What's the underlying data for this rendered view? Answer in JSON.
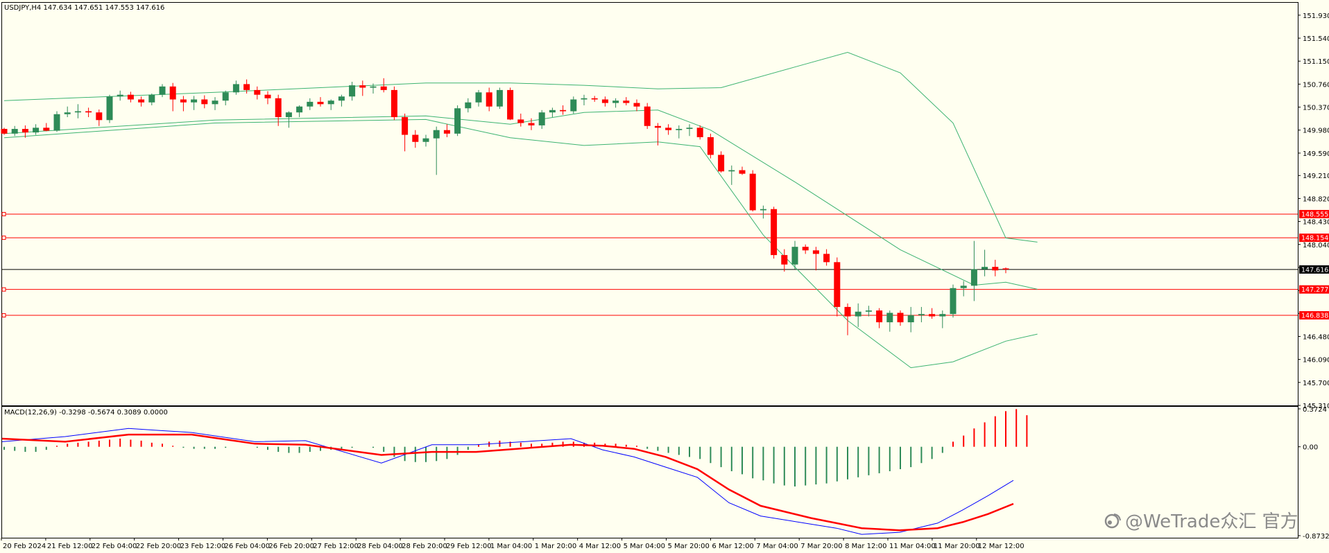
{
  "symbol_header": "USDJPY,H4  147.634 147.651 147.553 147.616",
  "macd_header": "MACD(12,26,9) -0.3298 -0.5674 0.3089 0.0000",
  "watermark": "@WeTrade众汇 官方",
  "colors": {
    "background": "#fffff0",
    "bull": "#2e8b57",
    "bear": "#ff0000",
    "bands": "#3cb371",
    "levels": "#ff0000",
    "macd_line": "#0000ff",
    "signal_line": "#ff0000"
  },
  "chart_data": [
    {
      "type": "candlestick",
      "title": "USDJPY,H4",
      "ohlc_readout": [
        "147.634",
        "147.651",
        "147.553",
        "147.616"
      ],
      "ylim": [
        145.31,
        152.14
      ],
      "y_ticks": [
        "151.930",
        "151.540",
        "151.150",
        "150.760",
        "150.370",
        "149.980",
        "149.590",
        "149.210",
        "148.820",
        "148.430",
        "148.040",
        "147.650",
        "147.260",
        "146.870",
        "146.480",
        "146.090",
        "145.700",
        "145.310"
      ],
      "x_ticks": [
        "20 Feb 2024",
        "21 Feb 12:00",
        "22 Feb 04:00",
        "22 Feb 20:00",
        "23 Feb 12:00",
        "26 Feb 04:00",
        "26 Feb 20:00",
        "27 Feb 12:00",
        "28 Feb 04:00",
        "28 Feb 20:00",
        "29 Feb 12:00",
        "1 Mar 04:00",
        "1 Mar 20:00",
        "4 Mar 12:00",
        "5 Mar 04:00",
        "5 Mar 20:00",
        "6 Mar 12:00",
        "7 Mar 04:00",
        "7 Mar 20:00",
        "8 Mar 12:00",
        "11 Mar 04:00",
        "11 Mar 20:00",
        "12 Mar 12:00"
      ],
      "current_price": {
        "value": 147.616,
        "label": "147.616"
      },
      "horizontal_levels": [
        {
          "value": 148.555,
          "label": "148.555"
        },
        {
          "value": 148.154,
          "label": "148.154"
        },
        {
          "value": 147.277,
          "label": "147.277"
        },
        {
          "value": 146.838,
          "label": "146.838"
        }
      ],
      "candles": [
        [
          150.0,
          150.02,
          149.9,
          149.92
        ],
        [
          149.92,
          150.05,
          149.88,
          150.0
        ],
        [
          150.0,
          150.06,
          149.85,
          149.94
        ],
        [
          149.94,
          150.08,
          149.9,
          150.02
        ],
        [
          150.02,
          150.1,
          149.96,
          149.97
        ],
        [
          149.97,
          150.3,
          149.95,
          150.25
        ],
        [
          150.25,
          150.38,
          150.2,
          150.28
        ],
        [
          150.28,
          150.42,
          150.18,
          150.3
        ],
        [
          150.3,
          150.36,
          150.2,
          150.28
        ],
        [
          150.28,
          150.33,
          150.05,
          150.15
        ],
        [
          150.15,
          150.58,
          150.1,
          150.55
        ],
        [
          150.55,
          150.65,
          150.48,
          150.58
        ],
        [
          150.58,
          150.63,
          150.45,
          150.5
        ],
        [
          150.5,
          150.55,
          150.38,
          150.45
        ],
        [
          150.45,
          150.6,
          150.4,
          150.58
        ],
        [
          150.58,
          150.76,
          150.54,
          150.72
        ],
        [
          150.72,
          150.78,
          150.3,
          150.5
        ],
        [
          150.5,
          150.56,
          150.3,
          150.45
        ],
        [
          150.45,
          150.56,
          150.32,
          150.5
        ],
        [
          150.5,
          150.57,
          150.35,
          150.42
        ],
        [
          150.42,
          150.54,
          150.32,
          150.48
        ],
        [
          150.48,
          150.65,
          150.4,
          150.62
        ],
        [
          150.62,
          150.82,
          150.58,
          150.76
        ],
        [
          150.76,
          150.84,
          150.6,
          150.66
        ],
        [
          150.66,
          150.72,
          150.5,
          150.58
        ],
        [
          150.58,
          150.64,
          150.42,
          150.52
        ],
        [
          150.52,
          150.58,
          150.05,
          150.2
        ],
        [
          150.2,
          150.3,
          150.02,
          150.28
        ],
        [
          150.28,
          150.4,
          150.2,
          150.38
        ],
        [
          150.38,
          150.52,
          150.32,
          150.46
        ],
        [
          150.46,
          150.54,
          150.38,
          150.42
        ],
        [
          150.42,
          150.5,
          150.32,
          150.48
        ],
        [
          150.48,
          150.58,
          150.38,
          150.55
        ],
        [
          150.55,
          150.8,
          150.48,
          150.74
        ],
        [
          150.74,
          150.82,
          150.56,
          150.7
        ],
        [
          150.7,
          150.77,
          150.6,
          150.72
        ],
        [
          150.72,
          150.86,
          150.62,
          150.66
        ],
        [
          150.66,
          150.72,
          150.15,
          150.2
        ],
        [
          150.2,
          150.26,
          149.62,
          149.9
        ],
        [
          149.9,
          149.98,
          149.68,
          149.78
        ],
        [
          149.78,
          149.9,
          149.7,
          149.84
        ],
        [
          149.84,
          150.04,
          149.22,
          149.98
        ],
        [
          149.98,
          150.08,
          149.86,
          149.92
        ],
        [
          149.92,
          150.4,
          149.88,
          150.35
        ],
        [
          150.35,
          150.52,
          150.28,
          150.45
        ],
        [
          150.45,
          150.66,
          150.38,
          150.62
        ],
        [
          150.62,
          150.7,
          150.3,
          150.38
        ],
        [
          150.38,
          150.7,
          150.34,
          150.66
        ],
        [
          150.66,
          150.7,
          150.15,
          150.16
        ],
        [
          150.16,
          150.26,
          150.04,
          150.1
        ],
        [
          150.1,
          150.18,
          149.98,
          150.06
        ],
        [
          150.06,
          150.32,
          150.0,
          150.28
        ],
        [
          150.28,
          150.36,
          150.2,
          150.32
        ],
        [
          150.32,
          150.4,
          150.24,
          150.3
        ],
        [
          150.3,
          150.55,
          150.26,
          150.5
        ],
        [
          150.5,
          150.58,
          150.4,
          150.52
        ],
        [
          150.52,
          150.56,
          150.46,
          150.5
        ],
        [
          150.5,
          150.55,
          150.38,
          150.44
        ],
        [
          150.44,
          150.52,
          150.36,
          150.48
        ],
        [
          150.48,
          150.54,
          150.4,
          150.44
        ],
        [
          150.44,
          150.5,
          150.3,
          150.38
        ],
        [
          150.38,
          150.44,
          150.0,
          150.05
        ],
        [
          150.05,
          150.1,
          149.72,
          150.02
        ],
        [
          150.02,
          150.08,
          149.9,
          149.98
        ],
        [
          149.98,
          150.06,
          149.84,
          150.0
        ],
        [
          150.0,
          150.08,
          149.88,
          150.02
        ],
        [
          150.02,
          150.06,
          149.82,
          149.86
        ],
        [
          149.86,
          149.92,
          149.5,
          149.56
        ],
        [
          149.56,
          149.62,
          149.26,
          149.28
        ],
        [
          149.28,
          149.38,
          149.05,
          149.3
        ],
        [
          149.3,
          149.36,
          149.22,
          149.24
        ],
        [
          149.24,
          149.3,
          148.6,
          148.62
        ],
        [
          148.62,
          148.7,
          148.48,
          148.64
        ],
        [
          148.64,
          148.68,
          147.8,
          147.86
        ],
        [
          147.86,
          147.96,
          147.58,
          147.7
        ],
        [
          147.7,
          148.1,
          147.62,
          148.0
        ],
        [
          148.0,
          148.04,
          147.88,
          147.94
        ],
        [
          147.94,
          148.0,
          147.6,
          147.88
        ],
        [
          147.88,
          147.96,
          147.68,
          147.74
        ],
        [
          147.74,
          147.82,
          146.82,
          146.98
        ],
        [
          146.98,
          147.04,
          146.5,
          146.82
        ],
        [
          146.82,
          147.04,
          146.64,
          146.9
        ],
        [
          146.9,
          147.0,
          146.82,
          146.92
        ],
        [
          146.92,
          146.96,
          146.62,
          146.72
        ],
        [
          146.72,
          146.92,
          146.56,
          146.88
        ],
        [
          146.88,
          146.92,
          146.66,
          146.72
        ],
        [
          146.72,
          146.98,
          146.55,
          146.84
        ],
        [
          146.84,
          146.98,
          146.72,
          146.86
        ],
        [
          146.86,
          146.96,
          146.78,
          146.82
        ],
        [
          146.82,
          146.92,
          146.62,
          146.86
        ],
        [
          146.86,
          147.36,
          146.8,
          147.3
        ],
        [
          147.3,
          147.42,
          147.16,
          147.34
        ],
        [
          147.34,
          148.1,
          147.08,
          147.62
        ],
        [
          147.62,
          147.95,
          147.5,
          147.66
        ],
        [
          147.66,
          147.78,
          147.5,
          147.6
        ],
        [
          147.634,
          147.651,
          147.553,
          147.616
        ]
      ],
      "bands": {
        "upper": [
          [
            0,
            150.48
          ],
          [
            20,
            150.62
          ],
          [
            40,
            150.78
          ],
          [
            48,
            150.78
          ],
          [
            55,
            150.74
          ],
          [
            62,
            150.68
          ],
          [
            68,
            150.7
          ],
          [
            75,
            151.05
          ],
          [
            80,
            151.3
          ],
          [
            85,
            150.95
          ],
          [
            90,
            150.1
          ],
          [
            95,
            148.15
          ],
          [
            98,
            148.08
          ]
        ],
        "middle": [
          [
            0,
            149.92
          ],
          [
            20,
            150.15
          ],
          [
            40,
            150.22
          ],
          [
            48,
            150.08
          ],
          [
            55,
            150.28
          ],
          [
            62,
            150.32
          ],
          [
            67,
            149.98
          ],
          [
            75,
            149.1
          ],
          [
            85,
            147.95
          ],
          [
            92,
            147.35
          ],
          [
            95,
            147.4
          ],
          [
            98,
            147.28
          ]
        ],
        "lower": [
          [
            0,
            149.85
          ],
          [
            20,
            150.1
          ],
          [
            40,
            150.16
          ],
          [
            48,
            149.85
          ],
          [
            55,
            149.72
          ],
          [
            62,
            149.78
          ],
          [
            66,
            149.7
          ],
          [
            72,
            148.2
          ],
          [
            80,
            146.75
          ],
          [
            86,
            145.95
          ],
          [
            90,
            146.05
          ],
          [
            95,
            146.4
          ],
          [
            98,
            146.52
          ]
        ]
      }
    },
    {
      "type": "line",
      "title": "MACD(12,26,9)",
      "readout": [
        "-0.3298",
        "-0.5674",
        "0.3089",
        "0.0000"
      ],
      "y_ticks": [
        "0.3724",
        "0.00",
        "-0.8732"
      ],
      "ylim": [
        -0.8732,
        0.3724
      ],
      "histogram": [
        -0.03,
        -0.04,
        -0.05,
        -0.05,
        -0.03,
        0.01,
        0.03,
        0.04,
        0.05,
        0.06,
        0.07,
        0.08,
        0.07,
        0.06,
        0.04,
        0.03,
        0.01,
        -0.01,
        -0.02,
        -0.02,
        -0.02,
        -0.01,
        0.0,
        0.0,
        -0.01,
        -0.03,
        -0.05,
        -0.06,
        -0.06,
        -0.05,
        -0.04,
        -0.03,
        -0.02,
        -0.01,
        0.0,
        -0.01,
        -0.05,
        -0.1,
        -0.14,
        -0.15,
        -0.15,
        -0.14,
        -0.12,
        -0.08,
        -0.03,
        0.02,
        0.05,
        0.06,
        0.05,
        0.04,
        0.03,
        0.03,
        0.04,
        0.05,
        0.05,
        0.04,
        0.04,
        0.03,
        0.03,
        0.02,
        0.01,
        -0.02,
        -0.04,
        -0.06,
        -0.08,
        -0.1,
        -0.12,
        -0.16,
        -0.2,
        -0.24,
        -0.27,
        -0.31,
        -0.33,
        -0.36,
        -0.38,
        -0.39,
        -0.38,
        -0.37,
        -0.36,
        -0.34,
        -0.32,
        -0.3,
        -0.28,
        -0.26,
        -0.24,
        -0.22,
        -0.2,
        -0.16,
        -0.12,
        -0.06,
        0.05,
        0.11,
        0.18,
        0.24,
        0.3,
        0.35,
        0.37,
        0.31
      ],
      "macd_line": [
        [
          0,
          0.05
        ],
        [
          10,
          0.1
        ],
        [
          20,
          0.18
        ],
        [
          25,
          0.16
        ],
        [
          30,
          0.14
        ],
        [
          40,
          0.05
        ],
        [
          48,
          0.06
        ],
        [
          60,
          -0.16
        ],
        [
          68,
          0.02
        ],
        [
          75,
          0.02
        ],
        [
          90,
          0.08
        ],
        [
          95,
          -0.03
        ],
        [
          100,
          -0.1
        ],
        [
          105,
          -0.2
        ],
        [
          110,
          -0.3
        ],
        [
          115,
          -0.55
        ],
        [
          120,
          -0.68
        ],
        [
          128,
          -0.76
        ],
        [
          132,
          -0.8
        ],
        [
          136,
          -0.86
        ],
        [
          142,
          -0.84
        ],
        [
          148,
          -0.75
        ],
        [
          152,
          -0.62
        ],
        [
          156,
          -0.48
        ],
        [
          160,
          -0.33
        ]
      ],
      "signal_line": [
        [
          0,
          0.08
        ],
        [
          10,
          0.05
        ],
        [
          20,
          0.12
        ],
        [
          30,
          0.12
        ],
        [
          40,
          0.03
        ],
        [
          48,
          0.02
        ],
        [
          60,
          -0.08
        ],
        [
          68,
          -0.05
        ],
        [
          75,
          -0.05
        ],
        [
          90,
          0.02
        ],
        [
          95,
          0.01
        ],
        [
          100,
          -0.02
        ],
        [
          105,
          -0.1
        ],
        [
          110,
          -0.22
        ],
        [
          115,
          -0.42
        ],
        [
          120,
          -0.58
        ],
        [
          128,
          -0.7
        ],
        [
          132,
          -0.75
        ],
        [
          136,
          -0.8
        ],
        [
          142,
          -0.82
        ],
        [
          148,
          -0.8
        ],
        [
          152,
          -0.74
        ],
        [
          156,
          -0.66
        ],
        [
          160,
          -0.56
        ]
      ]
    }
  ]
}
